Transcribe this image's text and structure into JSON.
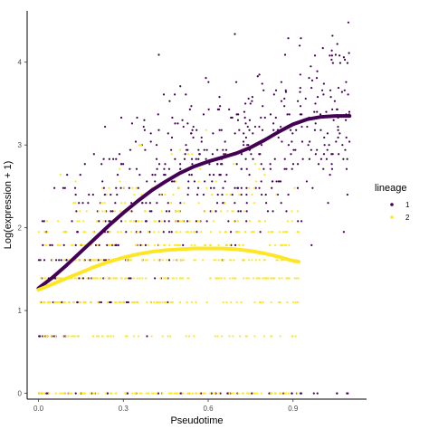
{
  "chart_data": {
    "type": "scatter",
    "xlabel": "Pseudotime",
    "ylabel": "Log(expression + 1)",
    "xlim": [
      -0.04,
      1.16
    ],
    "ylim": [
      -0.07,
      4.62
    ],
    "xticks": [
      0.0,
      0.3,
      0.6,
      0.9
    ],
    "xtick_labels": [
      "0.0",
      "0.3",
      "0.6",
      "0.9"
    ],
    "yticks": [
      0,
      1,
      2,
      3,
      4
    ],
    "ytick_labels": [
      "0",
      "1",
      "2",
      "3",
      "4"
    ],
    "grid": false,
    "legend": {
      "title": "lineage",
      "placement": "right",
      "entries": [
        {
          "label": "1",
          "color": "#440154"
        },
        {
          "label": "2",
          "color": "#FDE725"
        }
      ]
    },
    "series": [
      {
        "name": "1",
        "color": "#440154",
        "smooth_x": [
          0.0,
          0.05,
          0.1,
          0.15,
          0.2,
          0.25,
          0.3,
          0.35,
          0.4,
          0.45,
          0.5,
          0.55,
          0.6,
          0.65,
          0.7,
          0.75,
          0.8,
          0.85,
          0.9,
          0.95,
          1.0,
          1.05,
          1.1
        ],
        "smooth_y": [
          1.27,
          1.4,
          1.55,
          1.71,
          1.87,
          2.03,
          2.18,
          2.32,
          2.45,
          2.56,
          2.66,
          2.74,
          2.8,
          2.85,
          2.9,
          2.97,
          3.06,
          3.16,
          3.25,
          3.31,
          3.34,
          3.35,
          3.35
        ]
      },
      {
        "name": "2",
        "color": "#FDE725",
        "smooth_x": [
          0.0,
          0.05,
          0.1,
          0.15,
          0.2,
          0.25,
          0.3,
          0.35,
          0.4,
          0.45,
          0.5,
          0.55,
          0.6,
          0.65,
          0.7,
          0.75,
          0.8,
          0.85,
          0.9,
          0.92
        ],
        "smooth_y": [
          1.25,
          1.32,
          1.39,
          1.46,
          1.53,
          1.59,
          1.64,
          1.68,
          1.71,
          1.73,
          1.74,
          1.75,
          1.75,
          1.75,
          1.74,
          1.72,
          1.69,
          1.65,
          1.6,
          1.59
        ]
      }
    ],
    "observed_levels": [
      0,
      0.69,
      1.1,
      1.39,
      1.61,
      1.79,
      1.95,
      2.08,
      2.2,
      2.3,
      2.4,
      2.48,
      2.56,
      2.64,
      2.71,
      2.77,
      2.83,
      2.89,
      2.94,
      3.0,
      3.04,
      3.09,
      3.14,
      3.18,
      3.22,
      3.26,
      3.3,
      3.33,
      3.37,
      3.4,
      3.43,
      3.47,
      3.5,
      3.53,
      3.56,
      3.58,
      3.61,
      3.64,
      3.66,
      3.69,
      3.71,
      3.74,
      3.76,
      3.78,
      3.81,
      3.83,
      3.85,
      3.87,
      3.89,
      3.91,
      3.93,
      3.95,
      3.97,
      3.99,
      4.01,
      4.03,
      4.04,
      4.06,
      4.08,
      4.09,
      4.11,
      4.13,
      4.14,
      4.16,
      4.17,
      4.19,
      4.2,
      4.22,
      4.23,
      4.25,
      4.26,
      4.28,
      4.29,
      4.3,
      4.32,
      4.33,
      4.34,
      4.36,
      4.37,
      4.38,
      4.39,
      4.41,
      4.42,
      4.43,
      4.44,
      4.45,
      4.47,
      4.48
    ]
  }
}
